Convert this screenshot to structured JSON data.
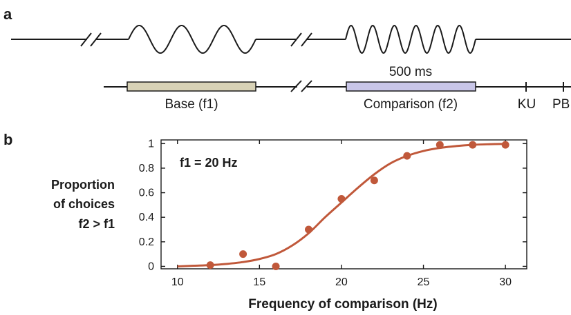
{
  "panel_a": {
    "letter": "a",
    "duration_label": "500 ms",
    "base_label": "Base (f1)",
    "comparison_label": "Comparison (f2)",
    "ku_label": "KU",
    "pb_label": "PB",
    "colors": {
      "base_bar": "#d8d2b6",
      "comparison_bar": "#c9c6e8"
    }
  },
  "panel_b": {
    "letter": "b",
    "ylabel_lines": [
      "Proportion",
      "of choices",
      "f2 > f1"
    ],
    "annotation": "f1 = 20 Hz",
    "colors": {
      "curve": "#c0583a",
      "points": "#c0583a"
    }
  },
  "chart_data": {
    "type": "scatter",
    "title": "",
    "xlabel": "Frequency of comparison (Hz)",
    "ylabel": "Proportion of choices f2 > f1",
    "xlim": [
      9,
      31.3
    ],
    "ylim": [
      -0.02,
      1.03
    ],
    "xticks": [
      10,
      15,
      20,
      25,
      30
    ],
    "yticks": [
      0,
      0.2,
      0.4,
      0.6,
      0.8,
      1
    ],
    "ytick_labels": [
      "0",
      "0.2",
      "0.4",
      "0.6",
      "0.8",
      "1"
    ],
    "grid": false,
    "series": [
      {
        "kind": "points",
        "x": [
          12,
          14,
          16,
          18,
          20,
          22,
          24,
          26,
          28,
          30
        ],
        "y": [
          0.01,
          0.1,
          0.0,
          0.3,
          0.55,
          0.7,
          0.9,
          0.99,
          0.99,
          0.99
        ]
      },
      {
        "kind": "fit",
        "x": [
          10,
          11,
          12,
          13,
          14,
          15,
          16,
          17,
          18,
          19,
          20,
          21,
          22,
          23,
          24,
          25,
          26,
          27,
          28,
          29,
          30
        ],
        "y": [
          0.0,
          0.005,
          0.01,
          0.02,
          0.035,
          0.06,
          0.1,
          0.17,
          0.27,
          0.4,
          0.52,
          0.64,
          0.75,
          0.84,
          0.9,
          0.94,
          0.965,
          0.98,
          0.99,
          0.995,
          0.998
        ]
      }
    ]
  }
}
